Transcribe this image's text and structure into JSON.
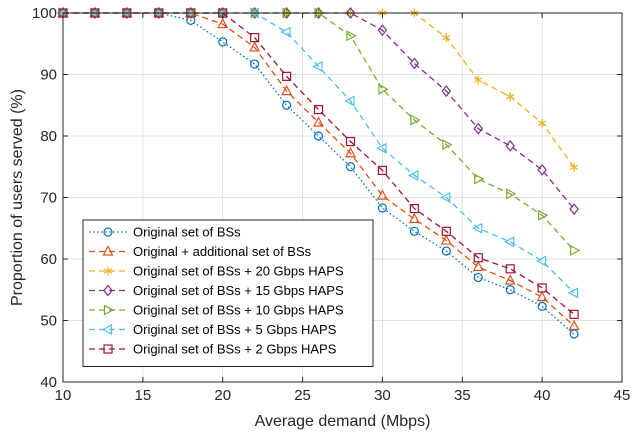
{
  "chart_data": {
    "type": "line",
    "xlabel": "Average demand (Mbps)",
    "ylabel": "Proportion of users served (%)",
    "xlim": [
      10,
      45
    ],
    "ylim": [
      40,
      100
    ],
    "xticks": [
      10,
      15,
      20,
      25,
      30,
      35,
      40,
      45
    ],
    "yticks": [
      40,
      50,
      60,
      70,
      80,
      90,
      100
    ],
    "grid": true,
    "legend_position": "bottom-left",
    "x": [
      10,
      12,
      14,
      16,
      18,
      20,
      22,
      24,
      26,
      28,
      30,
      32,
      34,
      36,
      38,
      40,
      42
    ],
    "series": [
      {
        "name": "Original set of BSs",
        "color": "#0072BD",
        "marker": "circle",
        "line": "dotted",
        "values": [
          100,
          100,
          100,
          100,
          98.8,
          95.3,
          91.7,
          85,
          80,
          75,
          68.3,
          64.5,
          61.3,
          57,
          55,
          52.3,
          47.8
        ]
      },
      {
        "name": "Original + additional set of BSs",
        "color": "#D95319",
        "marker": "triangle-up",
        "line": "dashed",
        "values": [
          100,
          100,
          100,
          100,
          100,
          98.2,
          94.4,
          87.3,
          82.2,
          77.2,
          70.3,
          66.5,
          63,
          58.7,
          56.5,
          53.8,
          49.1
        ]
      },
      {
        "name": "Original set of BSs + 20 Gbps HAPS",
        "color": "#EDB120",
        "marker": "asterisk",
        "line": "dashed",
        "values": [
          100,
          100,
          100,
          100,
          100,
          100,
          100,
          100,
          100,
          100,
          100,
          100,
          96,
          89.1,
          86.4,
          82.1,
          74.9
        ]
      },
      {
        "name": "Original set of BSs + 15 Gbps HAPS",
        "color": "#7E2F8E",
        "marker": "diamond",
        "line": "dashed",
        "values": [
          100,
          100,
          100,
          100,
          100,
          100,
          100,
          100,
          100,
          100,
          97.2,
          91.8,
          87.3,
          81.2,
          78.4,
          74.5,
          68.1
        ]
      },
      {
        "name": "Original set of BSs + 10 Gbps HAPS",
        "color": "#77AC30",
        "marker": "triangle-right",
        "line": "dashed",
        "values": [
          100,
          100,
          100,
          100,
          100,
          100,
          100,
          100,
          100,
          96.3,
          87.6,
          82.6,
          78.6,
          73,
          70.6,
          67.1,
          61.4
        ]
      },
      {
        "name": "Original set of BSs + 5 Gbps HAPS",
        "color": "#4DBEEE",
        "marker": "triangle-left",
        "line": "dashed",
        "values": [
          100,
          100,
          100,
          100,
          100,
          100,
          100,
          96.9,
          91.3,
          85.7,
          78,
          73.6,
          70,
          65,
          62.8,
          59.7,
          54.5
        ]
      },
      {
        "name": "Original set of BSs + 2 Gbps HAPS",
        "color": "#A2142F",
        "marker": "square",
        "line": "dashed",
        "values": [
          100,
          100,
          100,
          100,
          100,
          100,
          96,
          89.7,
          84.3,
          79.1,
          74.4,
          68.2,
          64.5,
          60.2,
          58.4,
          55.3,
          51
        ]
      }
    ]
  }
}
